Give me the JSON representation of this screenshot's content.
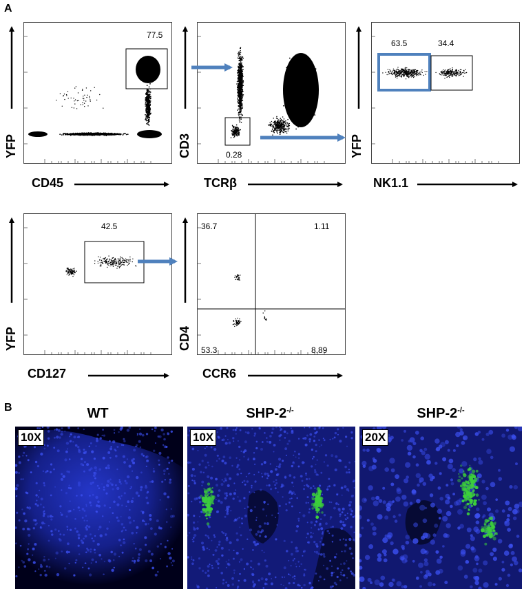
{
  "figure": {
    "panel_a_letter": "A",
    "panel_b_letter": "B",
    "flow_plots": [
      {
        "id": "cd45",
        "xlabel": "CD45",
        "ylabel": "YFP",
        "gates": [
          {
            "label": "77.5"
          }
        ]
      },
      {
        "id": "tcrb",
        "xlabel": "TCRβ",
        "ylabel": "CD3",
        "gates": [
          {
            "label": "0.28"
          }
        ]
      },
      {
        "id": "nk11",
        "xlabel": "NK1.1",
        "ylabel": "YFP",
        "gates": [
          {
            "label": "63.5"
          },
          {
            "label": "34.4"
          }
        ]
      },
      {
        "id": "cd127",
        "xlabel": "CD127",
        "ylabel": "YFP",
        "gates": [
          {
            "label": "42.5"
          }
        ]
      },
      {
        "id": "ccr6",
        "xlabel": "CCR6",
        "ylabel": "CD4",
        "gates": [
          {
            "label": "36.7"
          },
          {
            "label": "1.11"
          },
          {
            "label": "53.3"
          },
          {
            "label": "8.89"
          }
        ]
      }
    ],
    "micrographs": [
      {
        "title": "WT",
        "magnification": "10X"
      },
      {
        "title": "SHP-2",
        "title_sup": "-/-",
        "magnification": "10X"
      },
      {
        "title": "SHP-2",
        "title_sup": "-/-",
        "magnification": "20X"
      }
    ],
    "colors": {
      "arrow": "#4f81bd",
      "highlight_gate": "#4f81bd",
      "dapi": "#1a2bb0",
      "yfp": "#3ccf3c"
    }
  }
}
